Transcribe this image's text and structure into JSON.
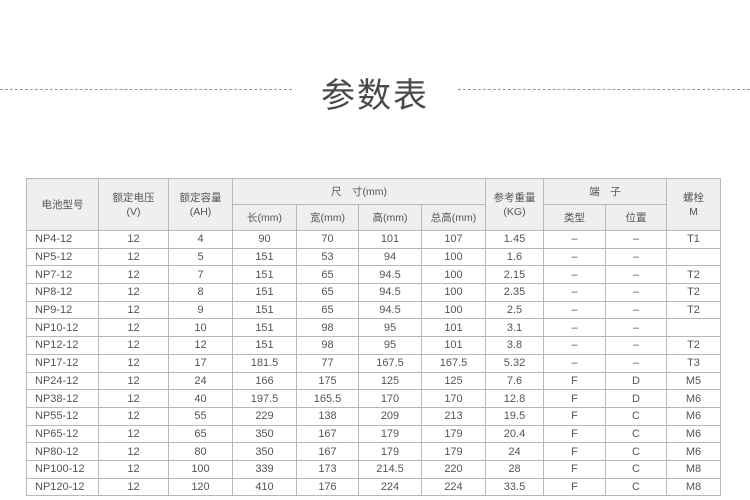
{
  "title": "参数表",
  "headers": {
    "model": "电池型号",
    "voltage": "额定电压",
    "voltage_unit": "(V)",
    "capacity": "额定容量",
    "capacity_unit": "(AH)",
    "size": "尺　寸(mm)",
    "length": "长(mm)",
    "width": "宽(mm)",
    "height": "高(mm)",
    "total_height": "总高(mm)",
    "weight": "参考重量",
    "weight_unit": "(KG)",
    "terminal": "端　子",
    "terminal_type": "类型",
    "terminal_position": "位置",
    "bolt": "螺栓",
    "bolt_unit": "M"
  },
  "rows": [
    [
      "NP4-12",
      "12",
      "4",
      "90",
      "70",
      "101",
      "107",
      "1.45",
      "–",
      "–",
      "T1"
    ],
    [
      "NP5-12",
      "12",
      "5",
      "151",
      "53",
      "94",
      "100",
      "1.6",
      "–",
      "–",
      ""
    ],
    [
      "NP7-12",
      "12",
      "7",
      "151",
      "65",
      "94.5",
      "100",
      "2.15",
      "–",
      "–",
      "T2"
    ],
    [
      "NP8-12",
      "12",
      "8",
      "151",
      "65",
      "94.5",
      "100",
      "2.35",
      "–",
      "–",
      "T2"
    ],
    [
      "NP9-12",
      "12",
      "9",
      "151",
      "65",
      "94.5",
      "100",
      "2.5",
      "–",
      "–",
      "T2"
    ],
    [
      "NP10-12",
      "12",
      "10",
      "151",
      "98",
      "95",
      "101",
      "3.1",
      "–",
      "–",
      ""
    ],
    [
      "NP12-12",
      "12",
      "12",
      "151",
      "98",
      "95",
      "101",
      "3.8",
      "–",
      "–",
      "T2"
    ],
    [
      "NP17-12",
      "12",
      "17",
      "181.5",
      "77",
      "167.5",
      "167.5",
      "5.32",
      "–",
      "–",
      "T3"
    ],
    [
      "NP24-12",
      "12",
      "24",
      "166",
      "175",
      "125",
      "125",
      "7.6",
      "F",
      "D",
      "M5"
    ],
    [
      "NP38-12",
      "12",
      "40",
      "197.5",
      "165.5",
      "170",
      "170",
      "12.8",
      "F",
      "D",
      "M6"
    ],
    [
      "NP55-12",
      "12",
      "55",
      "229",
      "138",
      "209",
      "213",
      "19.5",
      "F",
      "C",
      "M6"
    ],
    [
      "NP65-12",
      "12",
      "65",
      "350",
      "167",
      "179",
      "179",
      "20.4",
      "F",
      "C",
      "M6"
    ],
    [
      "NP80-12",
      "12",
      "80",
      "350",
      "167",
      "179",
      "179",
      "24",
      "F",
      "C",
      "M6"
    ],
    [
      "NP100-12",
      "12",
      "100",
      "339",
      "173",
      "214.5",
      "220",
      "28",
      "F",
      "C",
      "M8"
    ],
    [
      "NP120-12",
      "12",
      "120",
      "410",
      "176",
      "224",
      "224",
      "33.5",
      "F",
      "C",
      "M8"
    ]
  ]
}
